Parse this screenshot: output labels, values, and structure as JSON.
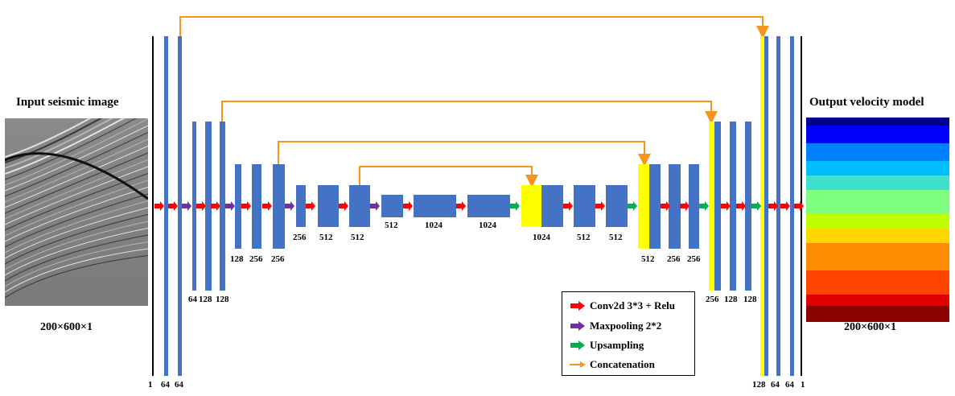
{
  "input": {
    "title": "Input seismic image",
    "dims": "200×600×1"
  },
  "output": {
    "title": "Output velocity model",
    "dims": "200×600×1"
  },
  "channels": {
    "enc1": [
      "1",
      "64",
      "64"
    ],
    "enc2": [
      "64",
      "128",
      "128"
    ],
    "enc3": [
      "128",
      "256",
      "256"
    ],
    "enc4": [
      "256",
      "512",
      "512"
    ],
    "bottleneck": [
      "512",
      "1024",
      "1024"
    ],
    "dec4": [
      "1024",
      "512",
      "512"
    ],
    "dec3": [
      "512",
      "256",
      "256"
    ],
    "dec2": [
      "256",
      "128",
      "128"
    ],
    "dec1": [
      "128",
      "64",
      "64",
      "1"
    ]
  },
  "legend": {
    "conv": "Conv2d 3*3 + Relu",
    "pool": "Maxpooling 2*2",
    "up": "Upsampling",
    "concat": "Concatenation"
  },
  "colors": {
    "block": "#4472c4",
    "concat_block": "#ffff00",
    "conv_arrow": "#ff0000",
    "pool_arrow": "#7030a0",
    "up_arrow": "#00b050",
    "concat_line": "#f7941d",
    "velocity_bands": [
      "#00008b",
      "#0000ff",
      "#0080ff",
      "#00bfff",
      "#40e0d0",
      "#7fff7f",
      "#bfff00",
      "#ffd700",
      "#ff8c00",
      "#ff4500",
      "#e00000",
      "#8b0000"
    ]
  },
  "icons": {
    "conv": "red-arrow-icon",
    "pool": "purple-arrow-icon",
    "up": "green-arrow-icon",
    "concat": "orange-line-arrow-icon"
  }
}
